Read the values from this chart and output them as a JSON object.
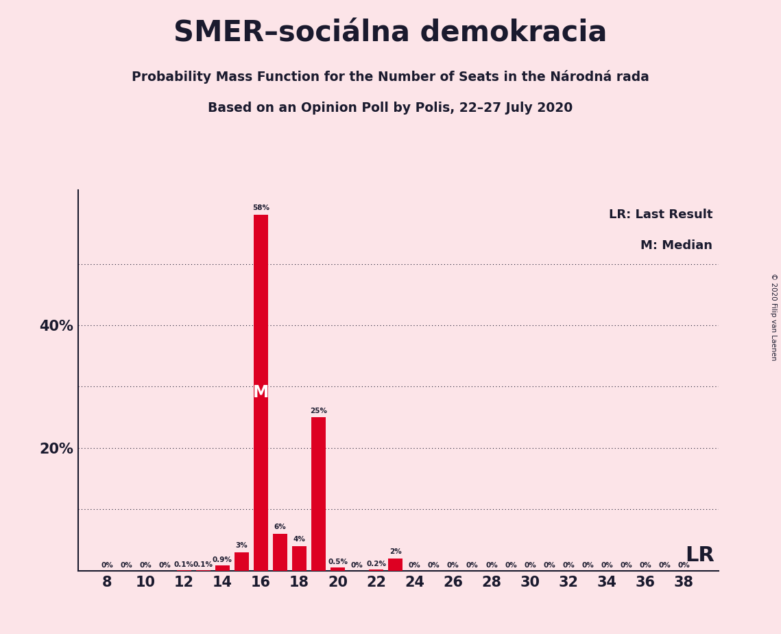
{
  "title": "SMER–sociálna demokracia",
  "subtitle1": "Probability Mass Function for the Number of Seats in the Národná rada",
  "subtitle2": "Based on an Opinion Poll by Polis, 22–27 July 2020",
  "copyright": "© 2020 Filip van Laenen",
  "background_color": "#fce4e8",
  "bar_color": "#dd0022",
  "text_color": "#1a1a2e",
  "seats": [
    8,
    9,
    10,
    11,
    12,
    13,
    14,
    15,
    16,
    17,
    18,
    19,
    20,
    21,
    22,
    23,
    24,
    25,
    26,
    27,
    28,
    29,
    30,
    31,
    32,
    33,
    34,
    35,
    36,
    37,
    38
  ],
  "probabilities": [
    0.0,
    0.0,
    0.0,
    0.0,
    0.1,
    0.1,
    0.9,
    3.0,
    58.0,
    6.0,
    4.0,
    25.0,
    0.5,
    0.0,
    0.2,
    2.0,
    0.0,
    0.0,
    0.0,
    0.0,
    0.0,
    0.0,
    0.0,
    0.0,
    0.0,
    0.0,
    0.0,
    0.0,
    0.0,
    0.0,
    0.0
  ],
  "bar_labels": [
    "0%",
    "0%",
    "0%",
    "0%",
    "0.1%",
    "0.1%",
    "0.9%",
    "3%",
    "58%",
    "6%",
    "4%",
    "25%",
    "0.5%",
    "0%",
    "0.2%",
    "2%",
    "0%",
    "0%",
    "0%",
    "0%",
    "0%",
    "0%",
    "0%",
    "0%",
    "0%",
    "0%",
    "0%",
    "0%",
    "0%",
    "0%",
    "0%"
  ],
  "median_seat": 16,
  "ylim": [
    0,
    62
  ],
  "grid_yticks": [
    10,
    20,
    30,
    40,
    50
  ],
  "ytick_show": [
    20,
    40
  ],
  "xtick_positions": [
    8,
    10,
    12,
    14,
    16,
    18,
    20,
    22,
    24,
    26,
    28,
    30,
    32,
    34,
    36,
    38
  ],
  "lr_annotation_text": "LR: Last Result",
  "m_annotation_text": "M: Median"
}
